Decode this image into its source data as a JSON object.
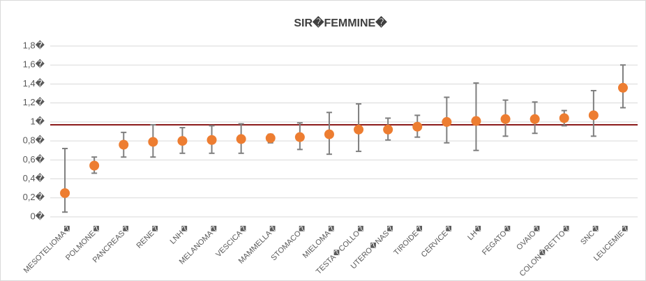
{
  "chart_data": {
    "type": "errorbar",
    "title": "SIR�FEMMINE�",
    "categories": [
      "MESOTELIOMA�",
      "POLMONE�",
      "PANCREAS�",
      "RENE�",
      "LNH�",
      "MELANOMA�",
      "VESCICA�",
      "MAMMELLA�",
      "STOMACO�",
      "MIELOMA�",
      "TESTA�COLLO�",
      "UTERO�NAS�",
      "TIROIDE�",
      "CERVICE�",
      "LH�",
      "FEGATO�",
      "OVAIO�",
      "COLON�RETTO�",
      "SNC�",
      "LEUCEMIE�"
    ],
    "values": [
      0.25,
      0.54,
      0.76,
      0.79,
      0.8,
      0.81,
      0.82,
      0.83,
      0.84,
      0.87,
      0.92,
      0.92,
      0.95,
      1.0,
      1.01,
      1.03,
      1.03,
      1.04,
      1.07,
      1.36
    ],
    "lower": [
      0.05,
      0.46,
      0.63,
      0.63,
      0.67,
      0.67,
      0.67,
      0.78,
      0.71,
      0.66,
      0.69,
      0.81,
      0.84,
      0.78,
      0.7,
      0.85,
      0.88,
      0.96,
      0.85,
      1.15
    ],
    "upper": [
      0.72,
      0.63,
      0.89,
      0.97,
      0.94,
      0.96,
      0.98,
      0.87,
      0.99,
      1.1,
      1.19,
      1.04,
      1.07,
      1.26,
      1.41,
      1.23,
      1.21,
      1.12,
      1.33,
      1.6
    ],
    "color": "#ed7d31",
    "error_color": "#7f7f7f",
    "reference_line": 0.97,
    "reference_color": "#8b1a1a",
    "ylim": [
      0,
      1.8
    ],
    "yticks": [
      {
        "value": 0,
        "label": "0�"
      },
      {
        "value": 0.2,
        "label": "0,2�"
      },
      {
        "value": 0.4,
        "label": "0,4�"
      },
      {
        "value": 0.6,
        "label": "0,6�"
      },
      {
        "value": 0.8,
        "label": "0,8�"
      },
      {
        "value": 1,
        "label": "1�"
      },
      {
        "value": 1.2,
        "label": "1,2�"
      },
      {
        "value": 1.4,
        "label": "1,4�"
      },
      {
        "value": 1.6,
        "label": "1,6�"
      },
      {
        "value": 1.8,
        "label": "1,8�"
      }
    ],
    "grid": true
  }
}
